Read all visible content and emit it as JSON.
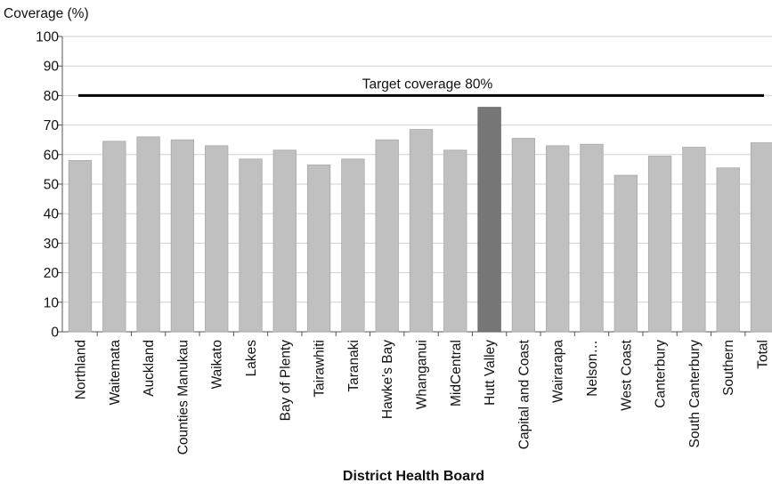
{
  "chart_data": {
    "type": "bar",
    "ylabel": "Coverage (%)",
    "xlabel": "District Health Board",
    "ylim": [
      0,
      100
    ],
    "yticks": [
      0,
      10,
      20,
      30,
      40,
      50,
      60,
      70,
      80,
      90,
      100
    ],
    "grid": true,
    "categories": [
      "Northland",
      "Waitemata",
      "Auckland",
      "Counties Manukau",
      "Waikato",
      "Lakes",
      "Bay of Plenty",
      "Tairawhiti",
      "Taranaki",
      "Hawke's Bay",
      "Whanganui",
      "MidCentral",
      "Hutt Valley",
      "Capital and Coast",
      "Wairarapa",
      "Nelson…",
      "West Coast",
      "Canterbury",
      "South Canterbury",
      "Southern",
      "Total"
    ],
    "values": [
      58,
      64.5,
      66,
      65,
      63,
      58.5,
      61.5,
      56.5,
      58.5,
      65,
      68.5,
      61.5,
      76,
      65.5,
      63,
      63.5,
      53,
      59.5,
      62.5,
      55.5,
      64
    ],
    "highlight_category": "Hutt Valley",
    "bar_color": "#c0c0c0",
    "highlight_color": "#777777",
    "target": {
      "value": 80,
      "label": "Target coverage 80%",
      "color": "#000000"
    }
  }
}
